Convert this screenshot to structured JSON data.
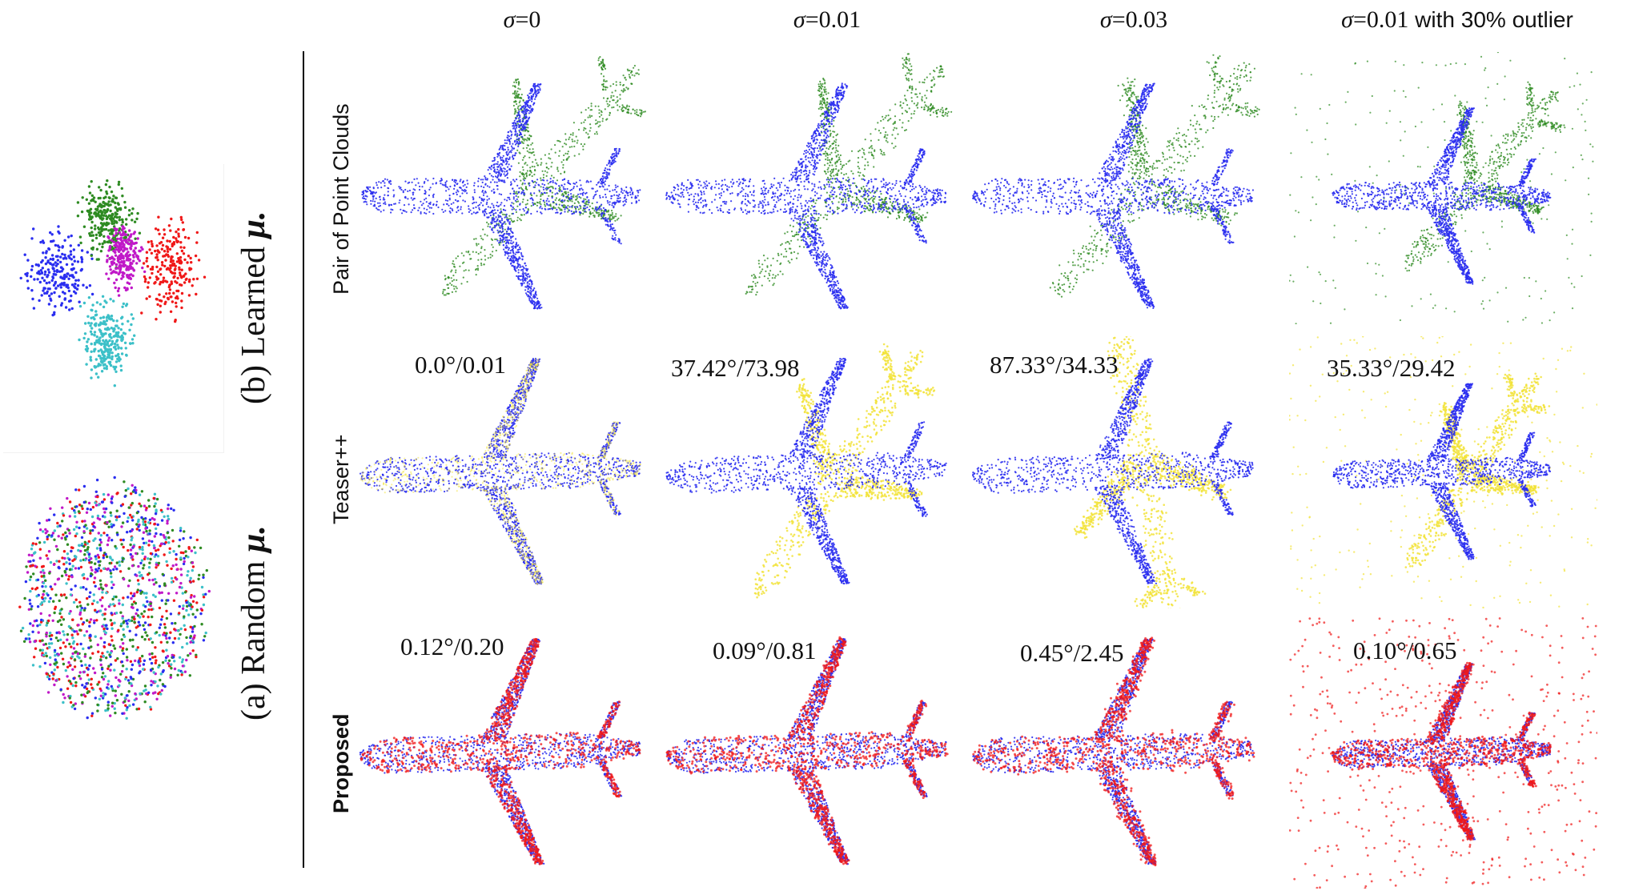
{
  "columns": [
    {
      "prefix": "σ",
      "suffix": "=0"
    },
    {
      "prefix": "σ",
      "suffix": "=0.01"
    },
    {
      "prefix": "σ",
      "suffix": "=0.03"
    },
    {
      "prefix": "σ",
      "suffix": "=0.01",
      "extra": " with 30% outlier"
    }
  ],
  "rows": {
    "pair": "Pair of Point Clouds",
    "teaser": "Teaser++",
    "proposed": "Proposed"
  },
  "side": {
    "learned_prefix": "(b) Learned ",
    "learned_mu": "μ.",
    "random_prefix": "(a) Random ",
    "random_mu": "μ."
  },
  "metrics": {
    "teaser": [
      "0.0°/0.01",
      "37.42°/73.98",
      "87.33°/34.33",
      "35.33°/29.42"
    ],
    "proposed": [
      "0.12°/0.20",
      "0.09°/0.81",
      "0.45°/2.45",
      "0.10°/0.65"
    ]
  },
  "colors": {
    "target": "#2a2ef0",
    "source_pair": "#2e8b22",
    "teaser_result": "#f2e33a",
    "proposed_result": "#f01818",
    "cluster": [
      "#2a2ef0",
      "#2e8b22",
      "#c019c8",
      "#f01818",
      "#3cc0c8"
    ]
  }
}
